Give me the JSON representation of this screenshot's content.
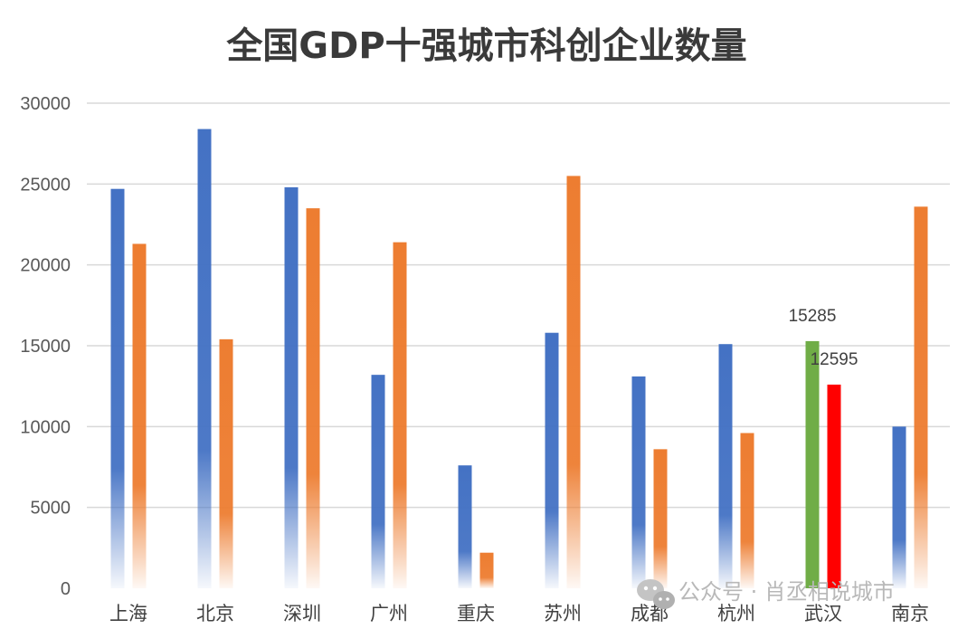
{
  "chart_data": {
    "type": "bar",
    "title": "全国GDP十强城市科创企业数量",
    "xlabel": "",
    "ylabel": "",
    "ylim": [
      0,
      30000
    ],
    "yticks": [
      0,
      5000,
      10000,
      15000,
      20000,
      25000,
      30000
    ],
    "grid": true,
    "categories": [
      "上海",
      "北京",
      "深圳",
      "广州",
      "重庆",
      "苏州",
      "成都",
      "杭州",
      "武汉",
      "南京"
    ],
    "series": [
      {
        "values": [
          24700,
          28400,
          24800,
          13200,
          7600,
          15800,
          13100,
          15100,
          15285,
          10000
        ],
        "color": "#4472c4",
        "highlight": {
          "武汉": "#70ad47"
        }
      },
      {
        "values": [
          21300,
          15400,
          23500,
          21400,
          2200,
          25500,
          8600,
          9600,
          12595,
          23600
        ],
        "color": "#ed7d31",
        "highlight": {
          "武汉": "#ff0000"
        }
      }
    ],
    "data_labels": [
      {
        "category": "武汉",
        "series": 0,
        "text": "15285"
      },
      {
        "category": "武汉",
        "series": 1,
        "text": "12595"
      }
    ]
  },
  "watermark": {
    "icon": "wechat-icon",
    "text": "公众号 · 肖丞相说城市"
  }
}
